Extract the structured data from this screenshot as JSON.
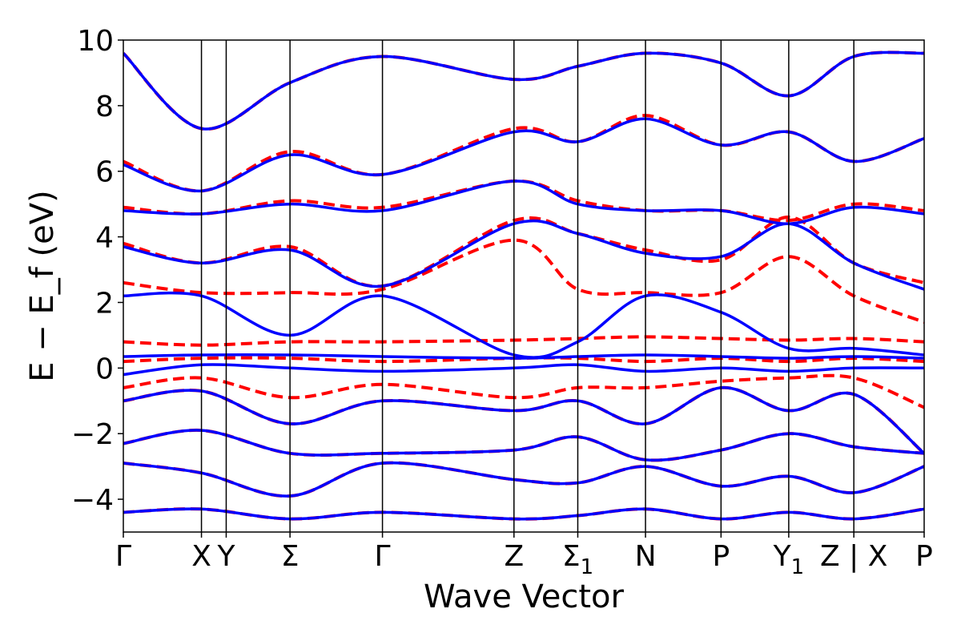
{
  "chart_data": {
    "type": "line",
    "title": "",
    "xlabel": "Wave Vector",
    "ylabel": "E − E_f (eV)",
    "ylim": [
      -5,
      10
    ],
    "xlim": [
      0,
      12.3
    ],
    "yticks": [
      -4,
      -2,
      0,
      2,
      4,
      6,
      8,
      10
    ],
    "ytick_labels": [
      "−4",
      "−2",
      "0",
      "2",
      "4",
      "6",
      "8",
      "10"
    ],
    "high_symmetry_points": [
      {
        "label": "Γ",
        "x": 0
      },
      {
        "label": "X",
        "x": 1.2
      },
      {
        "label": "Y",
        "x": 1.58
      },
      {
        "label": "Σ",
        "x": 2.56
      },
      {
        "label": "Γ",
        "x": 3.98
      },
      {
        "label": "Z",
        "x": 6.0
      },
      {
        "label": "Σ",
        "sub": "1",
        "x": 6.98
      },
      {
        "label": "N",
        "x": 8.02
      },
      {
        "label": "P",
        "x": 9.18
      },
      {
        "label": "Y",
        "sub": "1",
        "x": 10.22
      },
      {
        "label": "Z | X",
        "x": 11.22
      },
      {
        "label": "P",
        "x": 12.3
      }
    ],
    "colors": {
      "dashed": "#ff0000",
      "solid": "#0000ff"
    },
    "series": [
      {
        "name": "dashed",
        "style": "dashed",
        "color": "#ff0000",
        "bands": [
          {
            "x": [
              0,
              1.2,
              2.56,
              3.98,
              6.0,
              6.98,
              8.02,
              9.18,
              10.22,
              11.22,
              12.3
            ],
            "y": [
              -4.4,
              -4.3,
              -4.6,
              -4.4,
              -4.6,
              -4.5,
              -4.3,
              -4.6,
              -4.4,
              -4.6,
              -4.3
            ]
          },
          {
            "x": [
              0,
              1.2,
              2.56,
              3.98,
              6.0,
              6.98,
              8.02,
              9.18,
              10.22,
              11.22,
              12.3
            ],
            "y": [
              -2.9,
              -3.2,
              -3.9,
              -2.9,
              -3.4,
              -3.5,
              -3.0,
              -3.6,
              -3.3,
              -3.8,
              -3.0
            ]
          },
          {
            "x": [
              0,
              1.2,
              2.56,
              3.98,
              6.0,
              6.98,
              8.02,
              9.18,
              10.22,
              11.22,
              12.3
            ],
            "y": [
              -2.3,
              -1.9,
              -2.6,
              -2.6,
              -2.5,
              -2.1,
              -2.8,
              -2.5,
              -2.0,
              -2.4,
              -2.6
            ]
          },
          {
            "x": [
              0,
              1.2,
              2.56,
              3.98,
              6.0,
              6.98,
              8.02,
              9.18,
              10.22,
              11.22,
              12.3
            ],
            "y": [
              -1.0,
              -0.7,
              -1.7,
              -1.0,
              -1.3,
              -1.0,
              -1.7,
              -0.6,
              -1.3,
              -0.8,
              -2.6
            ]
          },
          {
            "x": [
              0,
              1.2,
              2.56,
              3.98,
              6.0,
              6.98,
              8.02,
              9.18,
              10.22,
              11.22,
              12.3
            ],
            "y": [
              -0.6,
              -0.3,
              -0.9,
              -0.5,
              -0.9,
              -0.6,
              -0.6,
              -0.4,
              -0.3,
              -0.3,
              -1.2
            ]
          },
          {
            "x": [
              0,
              1.2,
              2.56,
              3.98,
              6.0,
              6.98,
              8.02,
              9.18,
              10.22,
              11.22,
              12.3
            ],
            "y": [
              0.2,
              0.3,
              0.3,
              0.2,
              0.3,
              0.3,
              0.2,
              0.3,
              0.2,
              0.3,
              0.2
            ]
          },
          {
            "x": [
              0,
              1.2,
              2.56,
              3.98,
              6.0,
              6.98,
              8.02,
              9.18,
              10.22,
              11.22,
              12.3
            ],
            "y": [
              0.8,
              0.7,
              0.8,
              0.8,
              0.85,
              0.9,
              0.95,
              0.9,
              0.85,
              0.9,
              0.8
            ]
          },
          {
            "x": [
              0,
              1.2,
              2.56,
              3.98,
              6.0,
              6.98,
              8.02,
              9.18,
              10.22,
              11.22,
              12.3
            ],
            "y": [
              2.6,
              2.3,
              2.3,
              2.4,
              3.9,
              2.4,
              2.3,
              2.3,
              3.4,
              2.2,
              1.4
            ]
          },
          {
            "x": [
              0,
              1.2,
              2.56,
              3.98,
              6.0,
              6.98,
              8.02,
              9.18,
              10.22,
              11.22,
              12.3
            ],
            "y": [
              3.8,
              3.2,
              3.7,
              2.5,
              4.5,
              4.1,
              3.6,
              3.3,
              4.6,
              3.2,
              2.6
            ]
          },
          {
            "x": [
              0,
              1.2,
              2.56,
              3.98,
              6.0,
              6.98,
              8.02,
              9.18,
              10.22,
              11.22,
              12.3
            ],
            "y": [
              4.9,
              4.7,
              5.1,
              4.9,
              5.7,
              5.1,
              4.8,
              4.8,
              4.5,
              5.0,
              4.8
            ]
          },
          {
            "x": [
              0,
              1.2,
              2.56,
              3.98,
              6.0,
              6.98,
              8.02,
              9.18,
              10.22,
              11.22,
              12.3
            ],
            "y": [
              6.3,
              5.4,
              6.6,
              5.9,
              7.3,
              6.9,
              7.7,
              6.8,
              7.2,
              6.3,
              7.0
            ]
          },
          {
            "x": [
              0,
              1.2,
              2.56,
              3.98,
              6.0,
              6.98,
              8.02,
              9.18,
              10.22,
              11.22,
              12.3
            ],
            "y": [
              9.6,
              7.3,
              8.7,
              9.5,
              8.8,
              9.2,
              9.6,
              9.3,
              8.3,
              9.5,
              9.6
            ]
          }
        ]
      },
      {
        "name": "solid",
        "style": "solid",
        "color": "#0000ff",
        "bands": [
          {
            "x": [
              0,
              1.2,
              2.56,
              3.98,
              6.0,
              6.98,
              8.02,
              9.18,
              10.22,
              11.22,
              12.3
            ],
            "y": [
              -4.4,
              -4.3,
              -4.6,
              -4.4,
              -4.6,
              -4.5,
              -4.3,
              -4.6,
              -4.4,
              -4.6,
              -4.3
            ]
          },
          {
            "x": [
              0,
              1.2,
              2.56,
              3.98,
              6.0,
              6.98,
              8.02,
              9.18,
              10.22,
              11.22,
              12.3
            ],
            "y": [
              -2.9,
              -3.2,
              -3.9,
              -2.9,
              -3.4,
              -3.5,
              -3.0,
              -3.6,
              -3.3,
              -3.8,
              -3.0
            ]
          },
          {
            "x": [
              0,
              1.2,
              2.56,
              3.98,
              6.0,
              6.98,
              8.02,
              9.18,
              10.22,
              11.22,
              12.3
            ],
            "y": [
              -2.3,
              -1.9,
              -2.6,
              -2.6,
              -2.5,
              -2.1,
              -2.8,
              -2.5,
              -2.0,
              -2.4,
              -2.6
            ]
          },
          {
            "x": [
              0,
              1.2,
              2.56,
              3.98,
              6.0,
              6.98,
              8.02,
              9.18,
              10.22,
              11.22,
              12.3
            ],
            "y": [
              -1.0,
              -0.7,
              -1.7,
              -1.0,
              -1.3,
              -1.0,
              -1.7,
              -0.6,
              -1.3,
              -0.8,
              -2.6
            ]
          },
          {
            "x": [
              0,
              1.2,
              2.56,
              3.98,
              6.0,
              6.98,
              8.02,
              9.18,
              10.22,
              11.22,
              12.3
            ],
            "y": [
              -0.2,
              0.1,
              0.0,
              -0.1,
              0.0,
              0.1,
              -0.1,
              0.0,
              -0.1,
              0.0,
              0.0
            ]
          },
          {
            "x": [
              0,
              1.2,
              2.56,
              3.98,
              6.0,
              6.98,
              8.02,
              9.18,
              10.22,
              11.22,
              12.3
            ],
            "y": [
              0.35,
              0.4,
              0.4,
              0.35,
              0.3,
              0.35,
              0.4,
              0.35,
              0.3,
              0.35,
              0.3
            ]
          },
          {
            "x": [
              0,
              1.2,
              2.56,
              3.98,
              6.0,
              6.98,
              8.02,
              9.18,
              10.22,
              11.22,
              12.3
            ],
            "y": [
              2.2,
              2.2,
              1.0,
              2.2,
              0.4,
              0.8,
              2.2,
              1.7,
              0.6,
              0.6,
              0.4
            ]
          },
          {
            "x": [
              0,
              1.2,
              2.56,
              3.98,
              6.0,
              6.98,
              8.02,
              9.18,
              10.22,
              11.22,
              12.3
            ],
            "y": [
              3.7,
              3.2,
              3.6,
              2.5,
              4.4,
              4.1,
              3.5,
              3.4,
              4.4,
              3.2,
              2.4
            ]
          },
          {
            "x": [
              0,
              1.2,
              2.56,
              3.98,
              6.0,
              6.98,
              8.02,
              9.18,
              10.22,
              11.22,
              12.3
            ],
            "y": [
              4.8,
              4.7,
              5.0,
              4.8,
              5.7,
              5.0,
              4.8,
              4.8,
              4.4,
              4.9,
              4.7
            ]
          },
          {
            "x": [
              0,
              1.2,
              2.56,
              3.98,
              6.0,
              6.98,
              8.02,
              9.18,
              10.22,
              11.22,
              12.3
            ],
            "y": [
              6.2,
              5.4,
              6.5,
              5.9,
              7.2,
              6.9,
              7.6,
              6.8,
              7.2,
              6.3,
              7.0
            ]
          },
          {
            "x": [
              0,
              1.2,
              2.56,
              3.98,
              6.0,
              6.98,
              8.02,
              9.18,
              10.22,
              11.22,
              12.3
            ],
            "y": [
              9.6,
              7.3,
              8.7,
              9.5,
              8.8,
              9.2,
              9.6,
              9.3,
              8.3,
              9.5,
              9.6
            ]
          }
        ]
      }
    ]
  }
}
